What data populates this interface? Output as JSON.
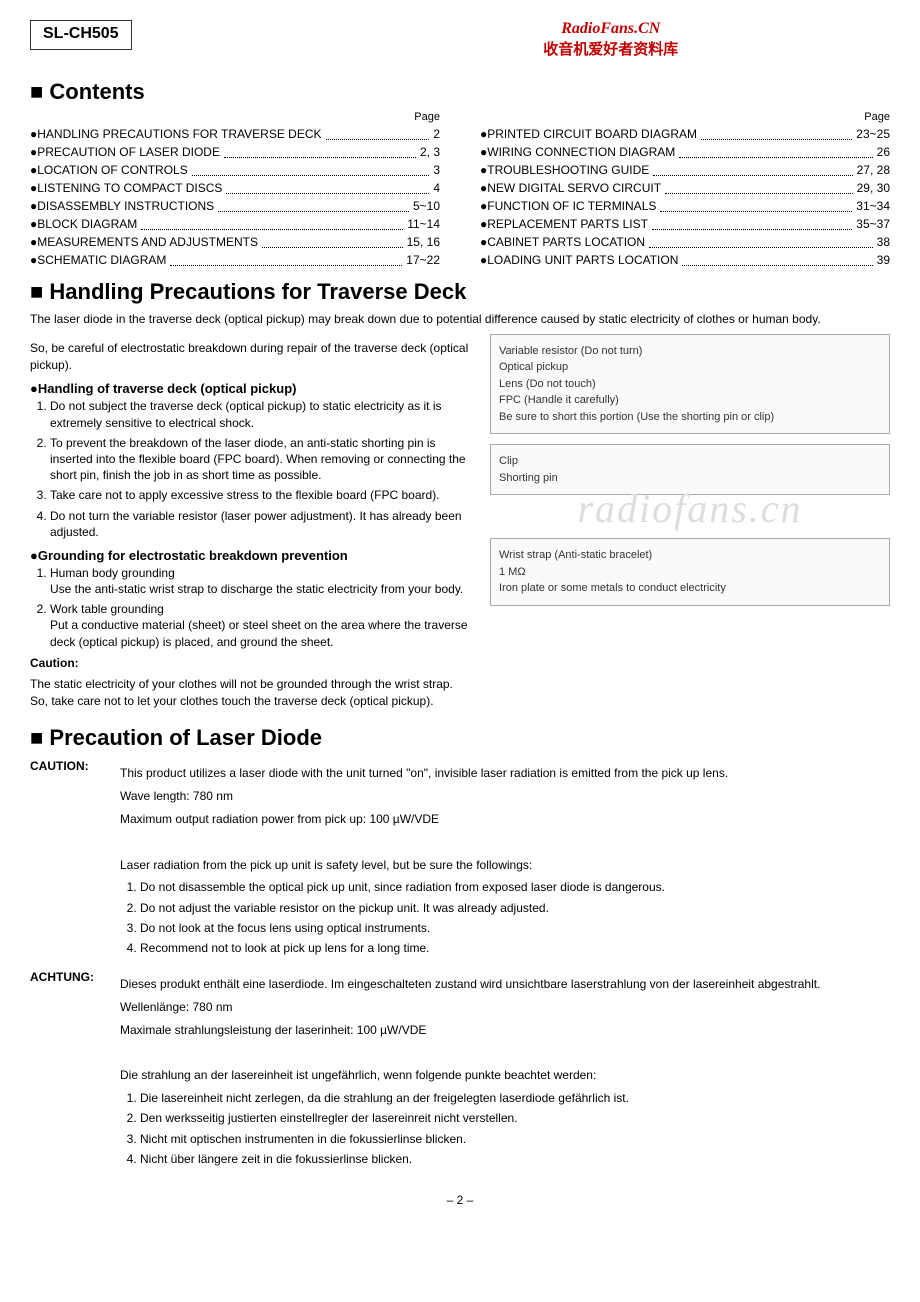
{
  "header": {
    "model": "SL-CH505",
    "site_name": "RadioFans.CN",
    "site_cn": "收音机爱好者资料库"
  },
  "contents": {
    "title": "Contents",
    "page_label": "Page",
    "left": [
      {
        "t": "●HANDLING PRECAUTIONS FOR TRAVERSE DECK",
        "p": "2"
      },
      {
        "t": "●PRECAUTION OF LASER DIODE",
        "p": "2, 3"
      },
      {
        "t": "●LOCATION OF CONTROLS",
        "p": "3"
      },
      {
        "t": "●LISTENING TO COMPACT DISCS",
        "p": "4"
      },
      {
        "t": "●DISASSEMBLY INSTRUCTIONS",
        "p": "5~10"
      },
      {
        "t": "●BLOCK DIAGRAM",
        "p": "11~14"
      },
      {
        "t": "●MEASUREMENTS AND ADJUSTMENTS",
        "p": "15, 16"
      },
      {
        "t": "●SCHEMATIC DIAGRAM",
        "p": "17~22"
      }
    ],
    "right": [
      {
        "t": "●PRINTED CIRCUIT BOARD DIAGRAM",
        "p": "23~25"
      },
      {
        "t": "●WIRING CONNECTION DIAGRAM",
        "p": "26"
      },
      {
        "t": "●TROUBLESHOOTING GUIDE",
        "p": "27, 28"
      },
      {
        "t": "●NEW DIGITAL SERVO CIRCUIT",
        "p": "29, 30"
      },
      {
        "t": "●FUNCTION OF IC TERMINALS",
        "p": "31~34"
      },
      {
        "t": "●REPLACEMENT PARTS LIST",
        "p": "35~37"
      },
      {
        "t": "●CABINET PARTS LOCATION",
        "p": "38"
      },
      {
        "t": "●LOADING UNIT PARTS LOCATION",
        "p": "39"
      }
    ]
  },
  "handling": {
    "title": "Handling Precautions for Traverse Deck",
    "intro1": "The laser diode in the traverse deck (optical pickup) may break down due to potential difference caused by static electricity of clothes or human body.",
    "intro2": "So, be careful of electrostatic breakdown during repair of the traverse deck (optical pickup).",
    "sub1": "●Handling of traverse deck (optical pickup)",
    "list1": [
      "Do not subject the traverse deck (optical pickup) to static electricity as it is extremely sensitive to electrical shock.",
      "To prevent the breakdown of the laser diode, an anti-static shorting pin is inserted into the flexible board (FPC board). When removing or connecting the short pin, finish the job in as short time as possible.",
      "Take care not to apply excessive stress to the flexible board (FPC board).",
      "Do not turn the variable resistor (laser power adjustment). It has already been adjusted."
    ],
    "sub2": "●Grounding for electrostatic breakdown prevention",
    "list2": [
      "Human body grounding\nUse the anti-static wrist strap to discharge the static electricity from your body.",
      "Work table grounding\nPut a conductive material (sheet) or steel sheet on the area where the traverse deck (optical pickup) is placed, and ground the sheet."
    ],
    "caution_label": "Caution:",
    "caution_text": "The static electricity of your clothes will not be grounded through the wrist strap. So, take care not to let your clothes touch the traverse deck (optical pickup).",
    "diagram1_labels": {
      "a": "Variable resistor (Do not turn)",
      "b": "Optical pickup",
      "c": "Lens (Do not touch)",
      "d": "FPC (Handle it carefully)",
      "e": "Be sure to short this portion (Use the shorting pin or clip)"
    },
    "diagram2_labels": {
      "a": "Clip",
      "b": "Shorting pin"
    },
    "watermark": "radiofans.cn",
    "diagram3_labels": {
      "a": "Wrist strap (Anti-static bracelet)",
      "b": "1 MΩ",
      "c": "Iron plate or some metals to conduct electricity"
    }
  },
  "laser": {
    "title": "Precaution of Laser Diode",
    "caution_key": "CAUTION:",
    "caution_lines": [
      "This product utilizes a laser diode with the unit turned \"on\", invisible laser radiation is emitted from the pick up lens.",
      "Wave length:  780 nm",
      "Maximum output radiation power from pick up:  100 µW/VDE",
      "",
      "Laser radiation from the pick up unit is safety level, but be sure the followings:"
    ],
    "caution_list": [
      "Do not disassemble the optical pick up unit, since radiation from exposed laser diode is dangerous.",
      "Do not adjust the variable resistor on the pickup unit. It was already adjusted.",
      "Do not look at the focus lens using optical instruments.",
      "Recommend not to look at pick up lens for a long time."
    ],
    "achtung_key": "ACHTUNG:",
    "achtung_intro": "Dieses produkt enthält eine laserdiode. Im eingeschalteten zustand wird unsichtbare laserstrahlung von der lasereinheit abgestrahlt.",
    "achtung_lines": [
      "Wellenlänge:  780 nm",
      "Maximale strahlungsleistung der laserinheit:  100 µW/VDE",
      "",
      "Die strahlung an der lasereinheit ist ungefährlich, wenn folgende punkte beachtet werden:"
    ],
    "achtung_list": [
      "Die lasereinheit nicht zerlegen, da die strahlung an der freigelegten laserdiode gefährlich ist.",
      "Den werksseitig justierten einstellregler der lasereinreit nicht verstellen.",
      "Nicht mit optischen instrumenten in die fokussierlinse blicken.",
      "Nicht über längere zeit in die fokussierlinse blicken."
    ]
  },
  "page_number": "– 2 –"
}
